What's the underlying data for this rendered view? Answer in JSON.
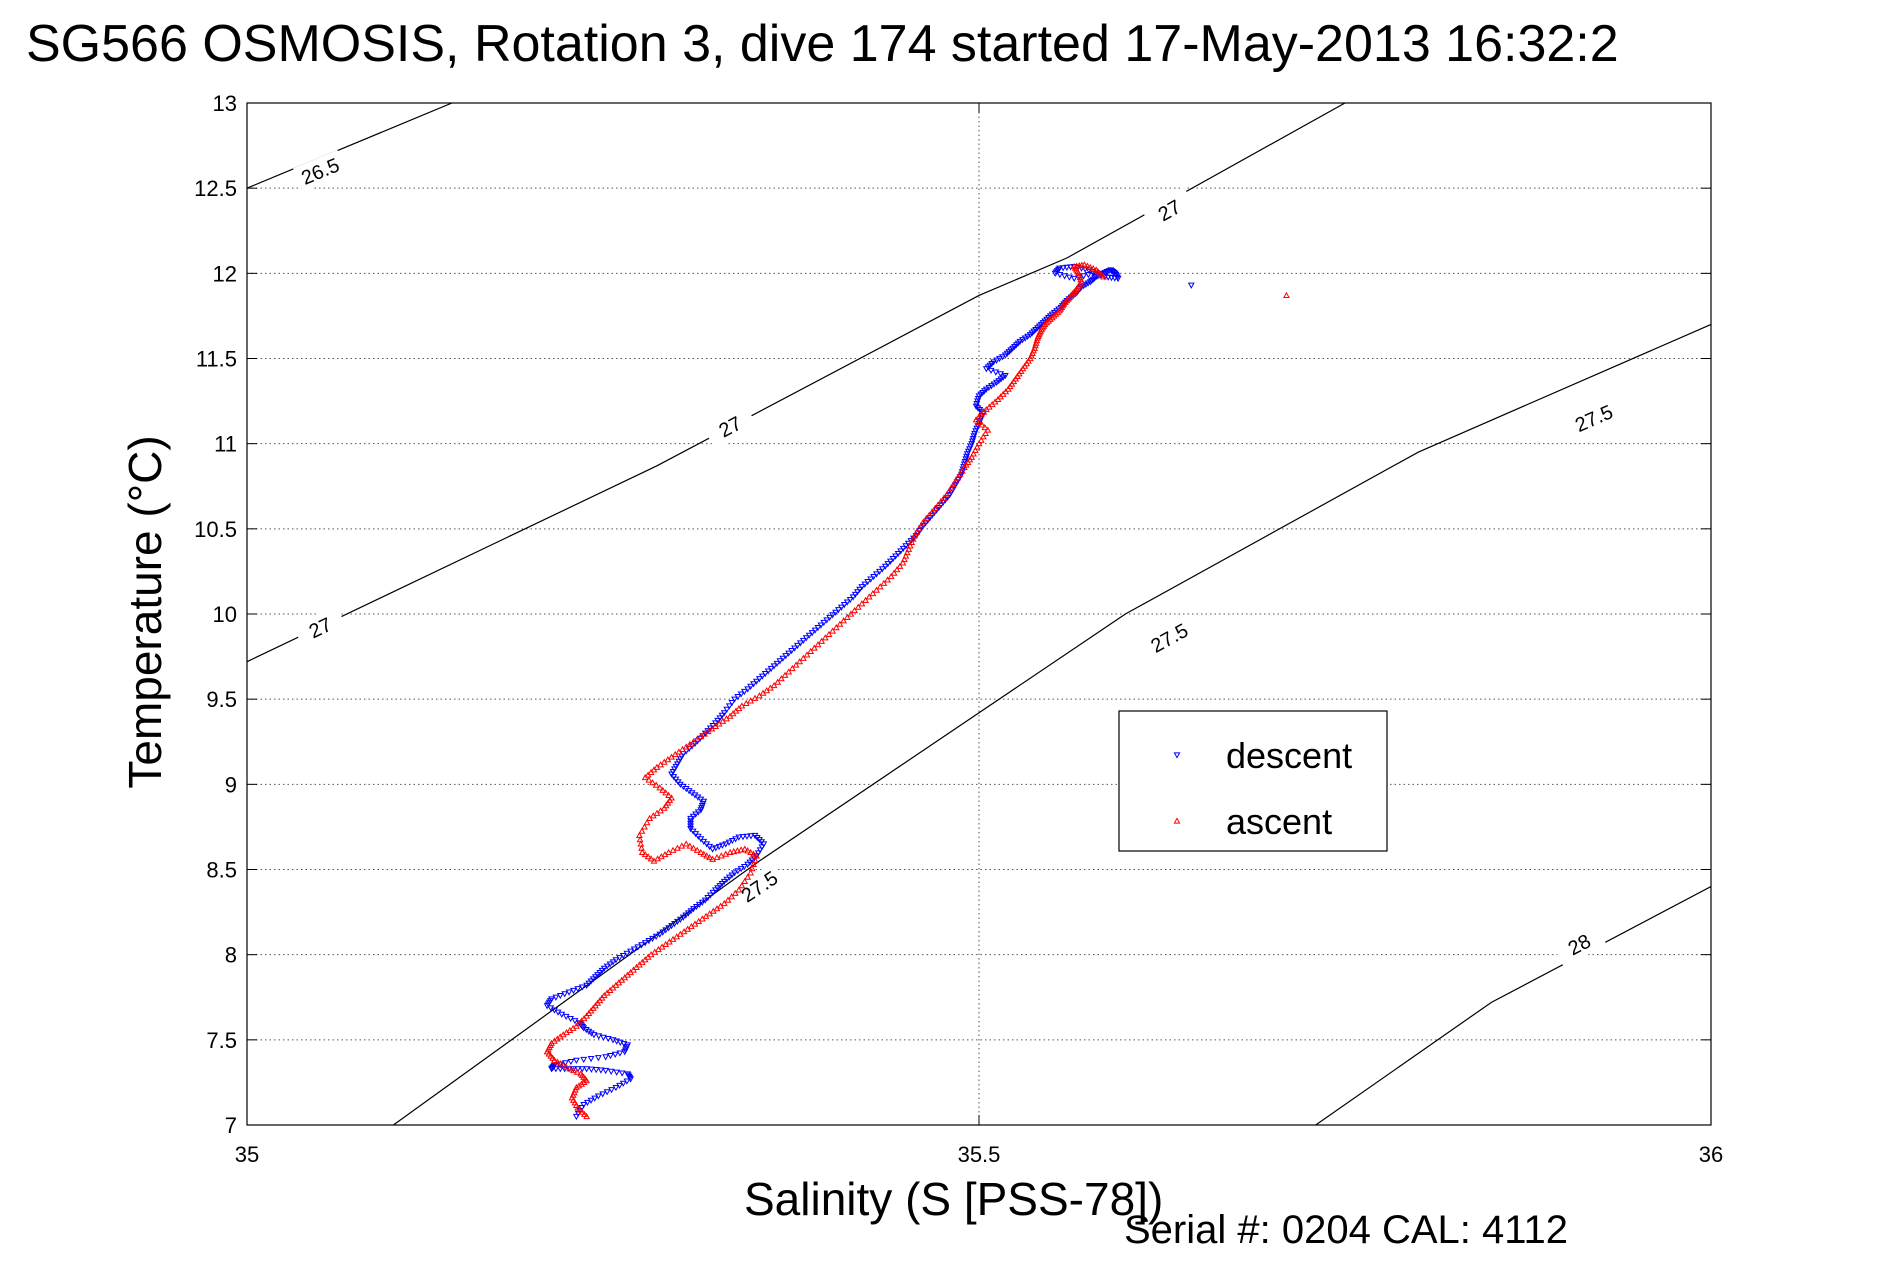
{
  "title": "SG566 OSMOSIS, Rotation 3, dive 174 started 17-May-2013 16:32:2",
  "footer": "Serial #: 0204  CAL: 4112",
  "chart_data": {
    "type": "scatter",
    "title": "SG566 OSMOSIS, Rotation 3, dive 174 started 17-May-2013 16:32:2",
    "xlabel": "Salinity (S [PSS-78])",
    "ylabel": "Temperature (°C)",
    "xlim": [
      35,
      36
    ],
    "ylim": [
      7,
      13
    ],
    "x_ticks": [
      35,
      35.5,
      36
    ],
    "x_tick_labels": [
      "35",
      "35.5",
      "36"
    ],
    "y_ticks": [
      7,
      7.5,
      8,
      8.5,
      9,
      9.5,
      10,
      10.5,
      11,
      11.5,
      12,
      12.5,
      13
    ],
    "y_tick_labels": [
      "7",
      "7.5",
      "8",
      "8.5",
      "9",
      "9.5",
      "10",
      "10.5",
      "11",
      "11.5",
      "12",
      "12.5",
      "13"
    ],
    "grid": true,
    "legend_position": "center-right",
    "isopycnals": [
      {
        "label": "26.5",
        "points": [
          [
            35,
            12.5
          ],
          [
            35.14,
            13
          ]
        ],
        "labels": [
          [
            35.05,
            12.6
          ]
        ]
      },
      {
        "label": "27",
        "points": [
          [
            35,
            9.72
          ],
          [
            35.28,
            10.87
          ],
          [
            35.5,
            11.87
          ],
          [
            35.56,
            12.09
          ],
          [
            35.75,
            13
          ]
        ],
        "labels": [
          [
            35.05,
            9.92
          ],
          [
            35.33,
            11.1
          ],
          [
            35.63,
            12.37
          ]
        ]
      },
      {
        "label": "27.5",
        "points": [
          [
            35.1,
            7
          ],
          [
            35.35,
            8.55
          ],
          [
            35.6,
            10.0
          ],
          [
            35.8,
            10.95
          ],
          [
            36,
            11.7
          ]
        ],
        "labels": [
          [
            35.35,
            8.4
          ],
          [
            35.63,
            9.86
          ],
          [
            35.92,
            11.15
          ]
        ]
      },
      {
        "label": "28",
        "points": [
          [
            35.73,
            7
          ],
          [
            35.85,
            7.72
          ],
          [
            36,
            8.4
          ]
        ],
        "labels": [
          [
            35.91,
            8.06
          ]
        ]
      }
    ],
    "series": [
      {
        "name": "descent",
        "color": "#0000ff",
        "marker": "triangle-down",
        "x": [
          35.225,
          35.23,
          35.24,
          35.252,
          35.262,
          35.26,
          35.245,
          35.232,
          35.22,
          35.208,
          35.21,
          35.225,
          35.245,
          35.258,
          35.26,
          35.25,
          35.237,
          35.23,
          35.227,
          35.215,
          35.205,
          35.208,
          35.22,
          35.232,
          35.238,
          35.244,
          35.252,
          35.262,
          35.272,
          35.282,
          35.29,
          35.298,
          35.305,
          35.313,
          35.32,
          35.326,
          35.333,
          35.342,
          35.348,
          35.353,
          35.347,
          35.336,
          35.327,
          35.318,
          35.31,
          35.303,
          35.303,
          35.31,
          35.312,
          35.304,
          35.296,
          35.29,
          35.294,
          35.298,
          35.306,
          35.313,
          35.32,
          35.326,
          35.333,
          35.342,
          35.35,
          35.358,
          35.366,
          35.374,
          35.382,
          35.39,
          35.398,
          35.406,
          35.414,
          35.42,
          35.428,
          35.436,
          35.443,
          35.45,
          35.457,
          35.462,
          35.468,
          35.474,
          35.48,
          35.484,
          35.488,
          35.49,
          35.492,
          35.495,
          35.497,
          35.5,
          35.503,
          35.498,
          35.5,
          35.505,
          35.512,
          35.518,
          35.505,
          35.51,
          35.518,
          35.523,
          35.528,
          35.535,
          35.54,
          35.545,
          35.55,
          35.556,
          35.56,
          35.566,
          35.57,
          35.576,
          35.58,
          35.585,
          35.59,
          35.593,
          35.595,
          35.586,
          35.575,
          35.565,
          35.555,
          35.552,
          35.565,
          35.578
        ],
        "y": [
          7.05,
          7.12,
          7.17,
          7.22,
          7.27,
          7.3,
          7.32,
          7.33,
          7.33,
          7.33,
          7.35,
          7.38,
          7.4,
          7.43,
          7.47,
          7.5,
          7.53,
          7.57,
          7.6,
          7.65,
          7.7,
          7.74,
          7.78,
          7.82,
          7.87,
          7.92,
          7.97,
          8.02,
          8.07,
          8.12,
          8.17,
          8.22,
          8.27,
          8.32,
          8.38,
          8.43,
          8.48,
          8.53,
          8.58,
          8.65,
          8.7,
          8.69,
          8.65,
          8.62,
          8.68,
          8.74,
          8.8,
          8.85,
          8.9,
          8.95,
          9.0,
          9.06,
          9.12,
          9.18,
          9.24,
          9.3,
          9.36,
          9.42,
          9.5,
          9.56,
          9.62,
          9.68,
          9.74,
          9.8,
          9.86,
          9.92,
          9.98,
          10.04,
          10.1,
          10.16,
          10.22,
          10.28,
          10.34,
          10.4,
          10.46,
          10.52,
          10.58,
          10.64,
          10.7,
          10.76,
          10.82,
          10.88,
          10.94,
          11.0,
          11.06,
          11.12,
          11.18,
          11.22,
          11.28,
          11.32,
          11.36,
          11.4,
          11.44,
          11.48,
          11.52,
          11.56,
          11.6,
          11.64,
          11.68,
          11.72,
          11.76,
          11.8,
          11.84,
          11.88,
          11.92,
          11.95,
          11.98,
          12.0,
          12.02,
          12.0,
          11.97,
          11.98,
          12.02,
          12.04,
          12.03,
          12.0,
          11.97,
          12.0
        ],
        "outliers": [
          [
            35.645,
            11.93
          ]
        ]
      },
      {
        "name": "ascent",
        "color": "#ff0000",
        "marker": "triangle-up",
        "x": [
          35.232,
          35.226,
          35.222,
          35.225,
          35.232,
          35.228,
          35.218,
          35.21,
          35.205,
          35.208,
          35.216,
          35.225,
          35.232,
          35.238,
          35.244,
          35.252,
          35.26,
          35.268,
          35.276,
          35.286,
          35.296,
          35.306,
          35.316,
          35.326,
          35.336,
          35.344,
          35.348,
          35.34,
          35.33,
          35.318,
          35.31,
          35.3,
          35.288,
          35.278,
          35.27,
          35.268,
          35.275,
          35.285,
          35.29,
          35.282,
          35.272,
          35.28,
          35.29,
          35.3,
          35.31,
          35.32,
          35.33,
          35.338,
          35.35,
          35.36,
          35.37,
          35.38,
          35.39,
          35.4,
          35.41,
          35.42,
          35.43,
          35.44,
          35.448,
          35.452,
          35.456,
          35.462,
          35.47,
          35.478,
          35.484,
          35.49,
          35.495,
          35.5,
          35.506,
          35.498,
          35.505,
          35.513,
          35.52,
          35.525,
          35.53,
          35.535,
          35.538,
          35.54,
          35.542,
          35.545,
          35.55,
          35.555,
          35.558,
          35.562,
          35.566,
          35.57,
          35.568,
          35.565,
          35.572,
          35.58,
          35.585
        ],
        "y": [
          7.05,
          7.1,
          7.16,
          7.22,
          7.26,
          7.3,
          7.34,
          7.38,
          7.43,
          7.48,
          7.53,
          7.58,
          7.64,
          7.7,
          7.76,
          7.82,
          7.88,
          7.94,
          8.0,
          8.06,
          8.12,
          8.18,
          8.24,
          8.3,
          8.38,
          8.48,
          8.58,
          8.62,
          8.6,
          8.56,
          8.6,
          8.65,
          8.6,
          8.55,
          8.6,
          8.7,
          8.8,
          8.86,
          8.92,
          8.98,
          9.04,
          9.1,
          9.16,
          9.22,
          9.28,
          9.34,
          9.4,
          9.46,
          9.52,
          9.58,
          9.66,
          9.74,
          9.82,
          9.9,
          9.98,
          10.06,
          10.14,
          10.22,
          10.3,
          10.38,
          10.46,
          10.54,
          10.62,
          10.7,
          10.78,
          10.86,
          10.92,
          11.0,
          11.08,
          11.14,
          11.2,
          11.26,
          11.32,
          11.38,
          11.44,
          11.5,
          11.56,
          11.62,
          11.66,
          11.7,
          11.74,
          11.78,
          11.82,
          11.86,
          11.9,
          11.95,
          12.0,
          12.04,
          12.05,
          12.02,
          11.98
        ],
        "outliers": [
          [
            35.71,
            11.87
          ]
        ]
      }
    ]
  }
}
